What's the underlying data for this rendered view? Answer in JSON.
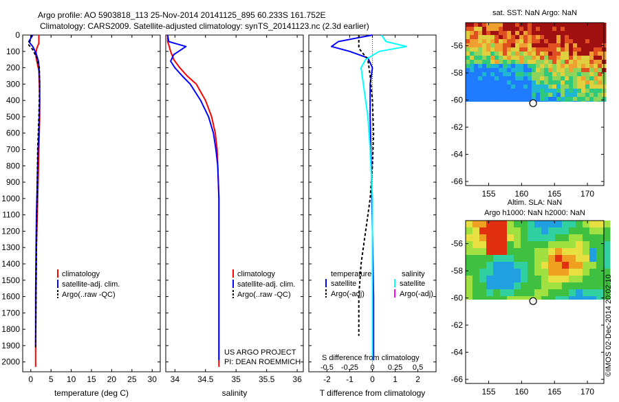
{
  "header": {
    "line1": "Argo profile: AO 5903818_113 25-Nov-2014 20141125_895 60.233S 161.752E",
    "line2": "Climatology: CARS2009. Satellite-adjusted climatology: synTS_20141123.nc (2.3d earlier)"
  },
  "colors": {
    "climatology": "#ff0000",
    "satellite": "#0000ff",
    "argo": "#000000",
    "salinity_satellite": "#00ffff",
    "salinity_argo": "#ff00ff"
  },
  "legend": {
    "climatology": "climatology",
    "satellite_adj": "satellite-adj. clim.",
    "argo_raw": "Argo(..raw -QC)",
    "temperature": "temperature",
    "salinity": "salinity",
    "satellite": "satellite",
    "argo_adj": "Argo(-adj)"
  },
  "annotations": {
    "project": "US ARGO PROJECT",
    "pi": "PI: DEAN ROEMMICH",
    "s_diff_title": "S difference from climatology",
    "credit": "©IMOS 02-Dec-2014 20:02:10"
  },
  "chart_data": [
    {
      "type": "line",
      "name": "temperature",
      "xlabel": "temperature (deg C)",
      "ylabel": "",
      "xlim": [
        -2,
        32
      ],
      "ylim": [
        2060,
        0
      ],
      "xticks": [
        0,
        5,
        10,
        15,
        20,
        25,
        30
      ],
      "yticks": [
        0,
        100,
        200,
        300,
        400,
        500,
        600,
        700,
        800,
        900,
        1000,
        1100,
        1200,
        1300,
        1400,
        1500,
        1600,
        1700,
        1800,
        1900,
        2000
      ],
      "series": [
        {
          "name": "climatology",
          "color": "#ff0000",
          "x": [
            2.0,
            2.0,
            1.5,
            1.2,
            1.5,
            2.0,
            2.1,
            2.2,
            2.2,
            2.1,
            2.0,
            1.8,
            1.6,
            1.4,
            1.3,
            1.2,
            1.2
          ],
          "y": [
            0,
            50,
            80,
            120,
            160,
            220,
            300,
            400,
            500,
            600,
            700,
            900,
            1100,
            1300,
            1600,
            1900,
            2030
          ]
        },
        {
          "name": "satellite-adj. clim.",
          "color": "#0000ff",
          "x": [
            0.5,
            -0.5,
            0.5,
            1.3,
            1.9,
            2.1,
            2.2,
            2.2,
            2.1,
            2.0,
            1.8,
            1.6,
            1.4,
            1.3,
            1.2,
            1.2
          ],
          "y": [
            0,
            40,
            70,
            110,
            160,
            220,
            300,
            400,
            500,
            600,
            700,
            900,
            1100,
            1300,
            1600,
            1900
          ]
        },
        {
          "name": "Argo(..raw -QC)",
          "color": "#000000",
          "x": [
            0.1,
            0.0,
            -0.5,
            0.5,
            1.5,
            2.1,
            2.2,
            2.0,
            1.7,
            1.6,
            1.5,
            1.4,
            1.3,
            1.2
          ],
          "y": [
            0,
            20,
            60,
            90,
            140,
            200,
            300,
            500,
            700,
            900,
            1100,
            1300,
            1600,
            1920
          ]
        }
      ]
    },
    {
      "type": "line",
      "name": "salinity",
      "xlabel": "salinity",
      "ylabel": "",
      "xlim": [
        33.85,
        36.1
      ],
      "ylim": [
        2060,
        0
      ],
      "xticks": [
        34,
        34.5,
        35,
        35.5,
        36
      ],
      "series": [
        {
          "name": "climatology",
          "color": "#ff0000",
          "x": [
            33.88,
            33.88,
            33.9,
            33.93,
            33.98,
            34.08,
            34.2,
            34.35,
            34.5,
            34.6,
            34.66,
            34.69,
            34.7,
            34.72,
            34.72,
            34.72,
            34.72
          ],
          "y": [
            0,
            40,
            60,
            100,
            150,
            200,
            250,
            300,
            400,
            500,
            600,
            700,
            800,
            1000,
            1200,
            1500,
            2030
          ]
        },
        {
          "name": "satellite-adj. clim.",
          "color": "#0000ff",
          "x": [
            33.88,
            33.9,
            34.18,
            33.98,
            33.93,
            34.0,
            34.12,
            34.25,
            34.42,
            34.55,
            34.63,
            34.67,
            34.7,
            34.72,
            34.72,
            34.72
          ],
          "y": [
            0,
            40,
            70,
            120,
            160,
            200,
            250,
            300,
            400,
            500,
            600,
            700,
            800,
            1000,
            1200,
            1990
          ]
        },
        {
          "name": "Argo(..raw -QC)",
          "color": "#000000",
          "x": [],
          "y": []
        }
      ]
    },
    {
      "type": "line",
      "name": "difference",
      "xlabel": "T difference from climatology",
      "ylabel": "",
      "xlim": [
        -2.8,
        2.8
      ],
      "ylim": [
        2060,
        0
      ],
      "xticks": [
        -2,
        -1,
        0,
        1,
        2
      ],
      "s_ticks": [
        -0.5,
        -0.25,
        0,
        0.25,
        0.5
      ],
      "s_tick_labels": [
        "-0.5",
        "-0.25",
        "0",
        "0.25",
        "0.5"
      ],
      "series": [
        {
          "name": "temperature satellite",
          "color": "#0000ff",
          "x": [
            0.0,
            -1.5,
            -1.8,
            -1.0,
            -0.2,
            0.0,
            -0.1,
            -0.1,
            -0.05,
            0.0,
            0.05,
            0.05,
            0.05
          ],
          "y": [
            0,
            40,
            70,
            100,
            140,
            200,
            300,
            500,
            800,
            1200,
            1600,
            1900,
            1990
          ]
        },
        {
          "name": "temperature Argo(-adj)",
          "color": "#000000",
          "x": [
            -0.6,
            -0.6,
            -0.2,
            -0.1,
            0.0,
            0.05,
            0.0,
            -0.1,
            -0.3,
            -0.5,
            -0.6,
            -0.6,
            -0.6
          ],
          "y": [
            0,
            80,
            150,
            250,
            400,
            600,
            800,
            1000,
            1200,
            1400,
            1600,
            1800,
            1840
          ]
        },
        {
          "name": "salinity satellite",
          "color": "#00ffff",
          "x": [
            0.4,
            0.6,
            1.5,
            0.3,
            -0.3,
            -0.5,
            -0.4,
            -0.2,
            -0.1,
            0.0,
            0.0,
            0.0,
            0.0
          ],
          "y": [
            0,
            40,
            70,
            100,
            150,
            200,
            300,
            500,
            700,
            1000,
            1400,
            1800,
            1990
          ]
        }
      ]
    }
  ],
  "maps": [
    {
      "title1": "sat. SST: NaN Argo: NaN",
      "title2": "",
      "xticks": [
        155,
        160,
        165,
        170
      ],
      "yticks": [
        -56,
        -58,
        -60,
        -62,
        -64,
        -66
      ],
      "xlim": [
        151.5,
        172.5
      ],
      "ylim": [
        -66.3,
        -54.3
      ],
      "field_lat_min": -60.1,
      "argo_lon": 161.752,
      "argo_lat": -60.233
    },
    {
      "title1": "Altim. SLA: NaN",
      "title2": "Argo h1000: NaN h2000: NaN",
      "xticks": [
        155,
        160,
        165,
        170
      ],
      "yticks": [
        -56,
        -58,
        -60,
        -62,
        -64,
        -66
      ],
      "xlim": [
        151.5,
        172.5
      ],
      "ylim": [
        -66.3,
        -54.3
      ],
      "field_lat_min": -60.1,
      "argo_lon": 161.752,
      "argo_lat": -60.233
    }
  ]
}
